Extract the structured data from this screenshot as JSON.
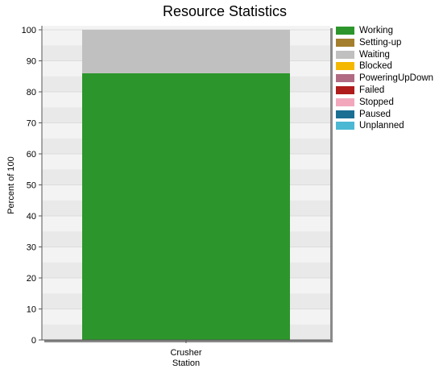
{
  "chart_data": {
    "type": "bar",
    "stacked": true,
    "title": "Resource Statistics",
    "xlabel": "",
    "ylabel": "Percent of 100",
    "ylim": [
      0,
      100
    ],
    "yticks": [
      0,
      10,
      20,
      30,
      40,
      50,
      60,
      70,
      80,
      90,
      100
    ],
    "categories": [
      [
        "Crusher",
        "Station"
      ]
    ],
    "grid": true,
    "legend_position": "right",
    "series": [
      {
        "name": "Working",
        "color": "#2c962c",
        "values": [
          86
        ]
      },
      {
        "name": "Setting-up",
        "color": "#a37f2e",
        "values": [
          0
        ]
      },
      {
        "name": "Waiting",
        "color": "#c0c0c0",
        "values": [
          14
        ]
      },
      {
        "name": "Blocked",
        "color": "#f5b800",
        "values": [
          0
        ]
      },
      {
        "name": "PoweringUpDown",
        "color": "#b06b83",
        "values": [
          0
        ]
      },
      {
        "name": "Failed",
        "color": "#b01c1c",
        "values": [
          0
        ]
      },
      {
        "name": "Stopped",
        "color": "#f2a7bd",
        "values": [
          0
        ]
      },
      {
        "name": "Paused",
        "color": "#1b6f93",
        "values": [
          0
        ]
      },
      {
        "name": "Unplanned",
        "color": "#4cb8d4",
        "values": [
          0
        ]
      }
    ]
  }
}
